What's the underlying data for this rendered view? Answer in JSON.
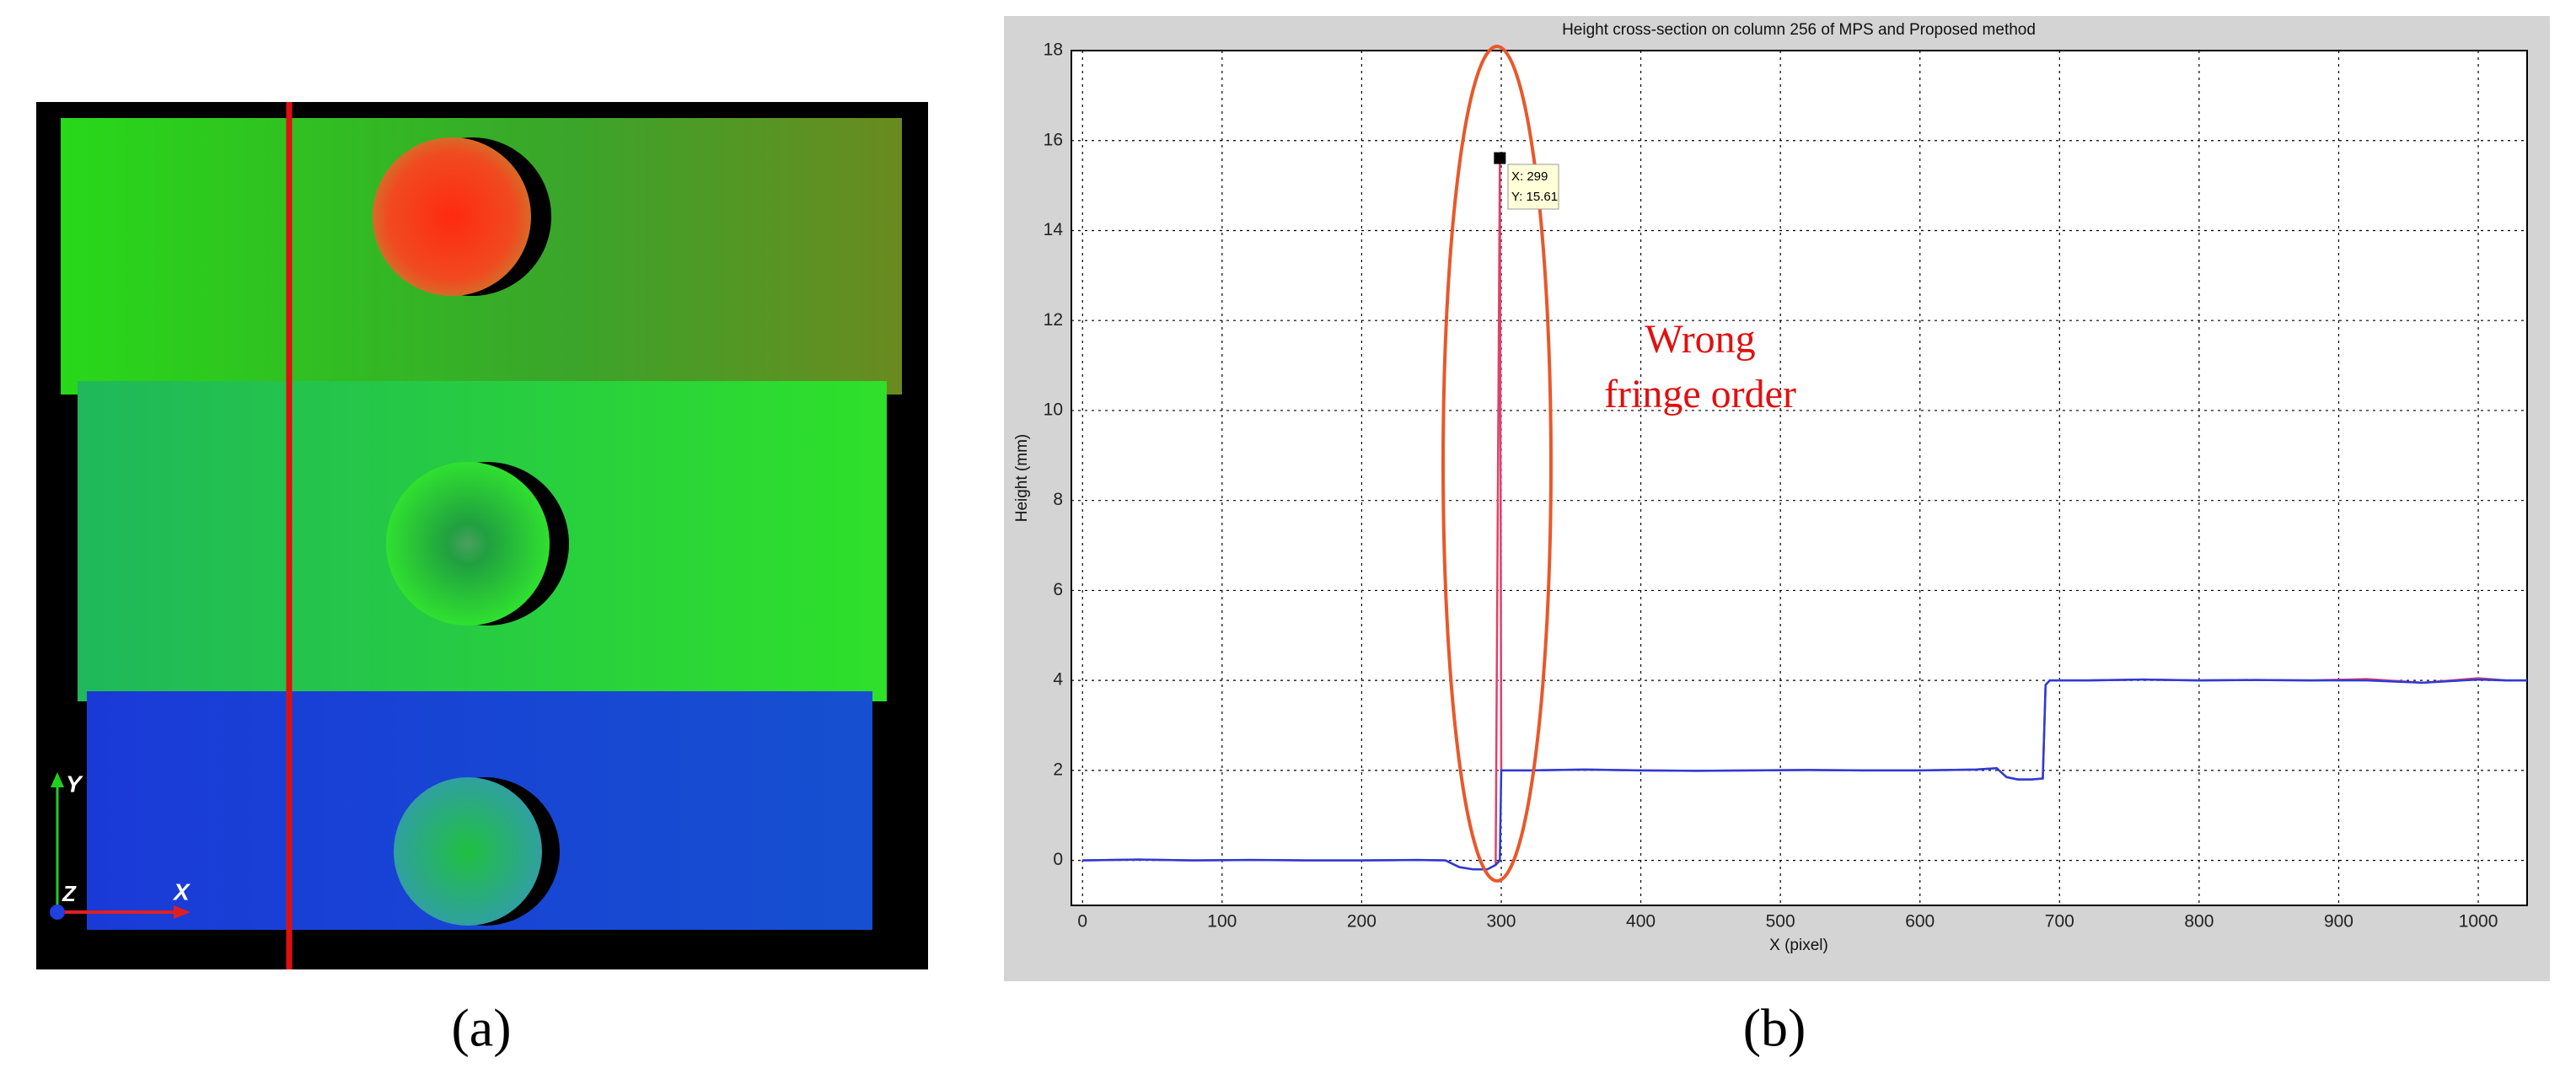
{
  "panel_a": {
    "caption": "(a)",
    "axis_x": "X",
    "axis_y": "Y",
    "axis_z": "Z"
  },
  "panel_b": {
    "caption": "(b)"
  },
  "chart_data": {
    "type": "line",
    "title": "Height cross-section on column 256 of MPS and Proposed method",
    "x_label": "X (pixel)",
    "y_label": "Height (mm)",
    "annotations": [
      "Wrong",
      "fringe order"
    ],
    "datatip": [
      "X: 299",
      "Y: 15.61"
    ],
    "x": [
      0,
      40,
      80,
      120,
      160,
      200,
      240,
      260,
      270,
      280,
      290,
      296,
      299,
      300,
      320,
      360,
      400,
      440,
      480,
      520,
      560,
      600,
      640,
      655,
      662,
      670,
      680,
      688,
      690,
      693,
      720,
      760,
      800,
      840,
      880,
      920,
      960,
      1000,
      1020,
      1035
    ],
    "series": [
      {
        "color": "#e0406a",
        "values": [
          0,
          0.02,
          0,
          0.01,
          0,
          0,
          0.01,
          0,
          -0.15,
          -0.2,
          -0.2,
          -0.1,
          15.61,
          2,
          2,
          2.02,
          2,
          1.99,
          2,
          2.01,
          2,
          2,
          2.02,
          2.05,
          1.85,
          1.8,
          1.8,
          1.82,
          3.9,
          4,
          4,
          4.02,
          4,
          4.01,
          4,
          4.03,
          3.95,
          4.05,
          4,
          4
        ]
      },
      {
        "color": "#2b3bd8",
        "values": [
          0,
          0.02,
          0,
          0.01,
          0,
          0,
          0.01,
          0,
          -0.15,
          -0.2,
          -0.2,
          -0.1,
          0,
          2,
          2,
          2.02,
          2,
          1.99,
          2,
          2.01,
          2,
          2,
          2.02,
          2.05,
          1.85,
          1.8,
          1.8,
          1.82,
          3.9,
          4,
          4,
          4.02,
          4,
          4.01,
          4,
          4,
          3.95,
          4.02,
          4,
          4
        ]
      }
    ],
    "xlim": [
      -8,
      1035
    ],
    "ylim": [
      -1,
      18
    ],
    "xticks": [
      0,
      100,
      200,
      300,
      400,
      500,
      600,
      700,
      800,
      900,
      1000
    ],
    "yticks": [
      0,
      2,
      4,
      6,
      8,
      10,
      12,
      14,
      16,
      18
    ],
    "grid": true
  }
}
